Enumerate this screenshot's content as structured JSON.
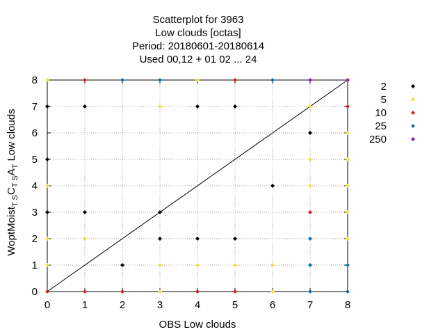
{
  "chart_data": {
    "type": "scatter",
    "title_lines": [
      "Scatterplot for      3963",
      "Low clouds [octas]",
      "Period: 20180601-20180614",
      "Used  00,12  + 01 02 ... 24"
    ],
    "xlabel": "OBS Low clouds",
    "ylabel_parts": {
      "main": "WoptMoist",
      "sub1": "T S",
      "mid1": "C",
      "sub2": "T S",
      "mid2": "A",
      "sub3": "T"
    },
    "xlim": [
      0,
      8
    ],
    "ylim": [
      0,
      8
    ],
    "x_ticks": [
      "0",
      "1",
      "2",
      "3",
      "4",
      "5",
      "6",
      "7",
      "8"
    ],
    "y_ticks": [
      "0",
      "1",
      "2",
      "3",
      "4",
      "5",
      "6",
      "7",
      "8"
    ],
    "grid": true,
    "diagonal_line": [
      [
        0,
        0
      ],
      [
        8,
        8
      ]
    ],
    "legend_position": "right",
    "series": [
      {
        "name": "2",
        "color": "#000000",
        "points": [
          [
            0,
            3
          ],
          [
            0,
            5
          ],
          [
            0,
            7
          ],
          [
            1,
            3
          ],
          [
            1,
            7
          ],
          [
            2,
            1
          ],
          [
            3,
            2
          ],
          [
            3,
            3
          ],
          [
            4,
            2
          ],
          [
            4,
            7
          ],
          [
            5,
            2
          ],
          [
            5,
            7
          ],
          [
            6,
            4
          ],
          [
            7,
            6
          ]
        ]
      },
      {
        "name": "5",
        "color": "#f0e040",
        "points": [
          [
            0,
            1
          ],
          [
            0,
            2
          ],
          [
            0,
            4
          ],
          [
            0,
            8
          ],
          [
            1,
            2
          ],
          [
            3,
            0
          ],
          [
            3,
            1
          ],
          [
            3,
            7
          ],
          [
            4,
            1
          ],
          [
            4,
            8
          ],
          [
            5,
            1
          ],
          [
            6,
            0
          ],
          [
            6,
            1
          ],
          [
            7,
            1
          ],
          [
            7,
            4
          ],
          [
            7,
            5
          ],
          [
            7,
            7
          ],
          [
            8,
            2
          ],
          [
            8,
            3
          ],
          [
            8,
            4
          ],
          [
            8,
            5
          ],
          [
            8,
            6
          ]
        ]
      },
      {
        "name": "10",
        "color": "#d42020",
        "points": [
          [
            0,
            0
          ],
          [
            1,
            0
          ],
          [
            1,
            8
          ],
          [
            2,
            0
          ],
          [
            4,
            0
          ],
          [
            5,
            0
          ],
          [
            5,
            8
          ],
          [
            7,
            3
          ],
          [
            8,
            7
          ]
        ]
      },
      {
        "name": "25",
        "color": "#1070b0",
        "points": [
          [
            2,
            8
          ],
          [
            3,
            8
          ],
          [
            6,
            8
          ],
          [
            7,
            0
          ],
          [
            7,
            1
          ],
          [
            7,
            2
          ],
          [
            8,
            0
          ],
          [
            8,
            1
          ]
        ]
      },
      {
        "name": "250",
        "color": "#8020c0",
        "points": [
          [
            7,
            8
          ],
          [
            8,
            8
          ]
        ]
      }
    ]
  }
}
